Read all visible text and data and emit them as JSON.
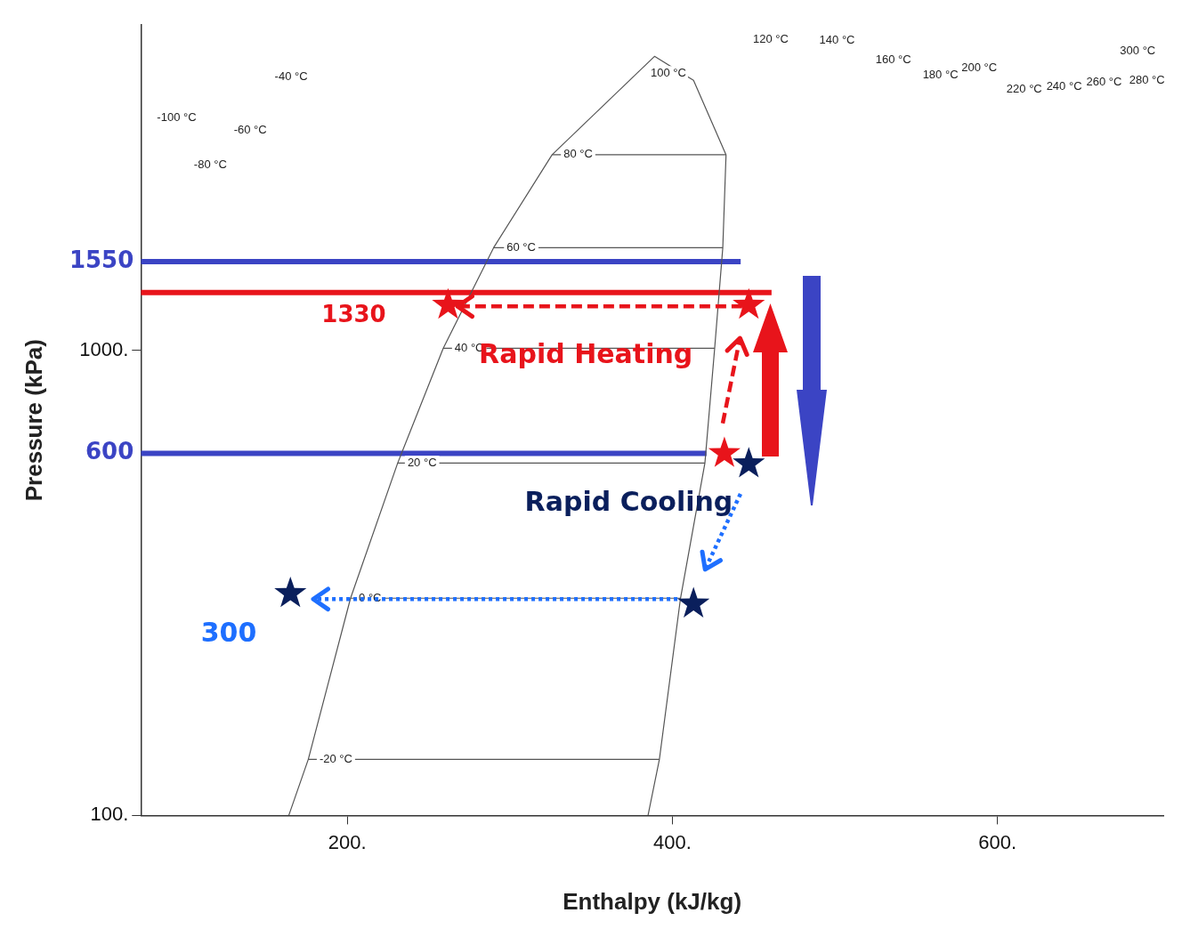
{
  "chart_data": {
    "type": "line",
    "xlabel": "Enthalpy (kJ/kg)",
    "ylabel": "Pressure (kPa)",
    "log": "y",
    "grid": false,
    "legend": false,
    "xlim": [
      73,
      702
    ],
    "ylim": [
      100,
      5000
    ],
    "xticks": [
      {
        "value": 200,
        "label": "200."
      },
      {
        "value": 400,
        "label": "400."
      },
      {
        "value": 600,
        "label": "600."
      }
    ],
    "yticks": [
      {
        "value": 100,
        "label": "100."
      },
      {
        "value": 1000,
        "label": "1000."
      }
    ],
    "series": [
      {
        "type": "line",
        "color": "#555555",
        "line_style": "solid",
        "marker": "none",
        "x": [
          164,
          176,
          202,
          231,
          259,
          290,
          326,
          389,
          413,
          433,
          431,
          426,
          420,
          405,
          392,
          385
        ],
        "values": [
          100,
          132,
          293,
          572,
          1009,
          1660,
          2630,
          4280,
          3800,
          2630,
          1660,
          1009,
          572,
          293,
          132,
          100
        ]
      },
      {
        "type": "line",
        "color": "#555555",
        "line_style": "solid",
        "marker": "none",
        "x": [
          176,
          392
        ],
        "values": [
          132,
          132
        ]
      },
      {
        "type": "line",
        "color": "#555555",
        "line_style": "solid",
        "marker": "none",
        "x": [
          202,
          405
        ],
        "values": [
          293,
          293
        ]
      },
      {
        "type": "line",
        "color": "#555555",
        "line_style": "solid",
        "marker": "none",
        "x": [
          231,
          420
        ],
        "values": [
          572,
          572
        ]
      },
      {
        "type": "line",
        "color": "#555555",
        "line_style": "solid",
        "marker": "none",
        "x": [
          259,
          426
        ],
        "values": [
          1009,
          1009
        ]
      },
      {
        "type": "line",
        "color": "#555555",
        "line_style": "solid",
        "marker": "none",
        "x": [
          290,
          431
        ],
        "values": [
          1660,
          1660
        ]
      },
      {
        "type": "line",
        "color": "#555555",
        "line_style": "solid",
        "marker": "none",
        "x": [
          326,
          433
        ],
        "values": [
          2630,
          2630
        ]
      },
      {
        "type": "line",
        "color": "#3b44c4",
        "line_style": "solid",
        "marker": "none",
        "x": [
          73,
          442
        ],
        "values": [
          1550,
          1550
        ]
      },
      {
        "type": "line",
        "color": "#e8141b",
        "line_style": "solid",
        "marker": "none",
        "x": [
          73,
          461
        ],
        "values": [
          1330,
          1330
        ]
      },
      {
        "type": "line",
        "color": "#3b44c4",
        "line_style": "solid",
        "marker": "none",
        "x": [
          73,
          421
        ],
        "values": [
          600,
          600
        ]
      },
      {
        "type": "scatter",
        "color": "#e8141b",
        "marker": "star",
        "x": [
          262,
          447,
          432
        ],
        "values": [
          1250,
          1250,
          600
        ]
      },
      {
        "type": "scatter",
        "color": "#0a1f5c",
        "marker": "star",
        "x": [
          447,
          413,
          165
        ],
        "values": [
          570,
          285,
          300
        ]
      }
    ],
    "annotations": [
      {
        "text": "1550",
        "x": 73,
        "y": 1550
      },
      {
        "text": "1330",
        "x": 204,
        "y": 1330
      },
      {
        "text": "600",
        "x": 73,
        "y": 600
      },
      {
        "text": "80 °C",
        "x": 342,
        "y": 2630
      },
      {
        "text": "60 °C",
        "x": 307,
        "y": 1660
      },
      {
        "text": "40 °C",
        "x": 275,
        "y": 1009
      },
      {
        "text": "20 °C",
        "x": 246,
        "y": 572
      },
      {
        "text": "0 °C",
        "x": 214,
        "y": 293
      },
      {
        "text": "-20 °C",
        "x": 193,
        "y": 132
      },
      "-100 °C",
      "-80 °C",
      "-60 °C",
      "-40 °C",
      "100 °C",
      "120 °C",
      "140 °C",
      "160 °C",
      "180 °C",
      "200 °C",
      "220 °C",
      "240 °C",
      "260 °C",
      "280 °C",
      "300 °C",
      {
        "text": "Rapid Heating",
        "x": 447,
        "y": 1250
      },
      {
        "text": "Rapid Cooling",
        "x": 447,
        "y": 570
      },
      "300"
    ]
  }
}
